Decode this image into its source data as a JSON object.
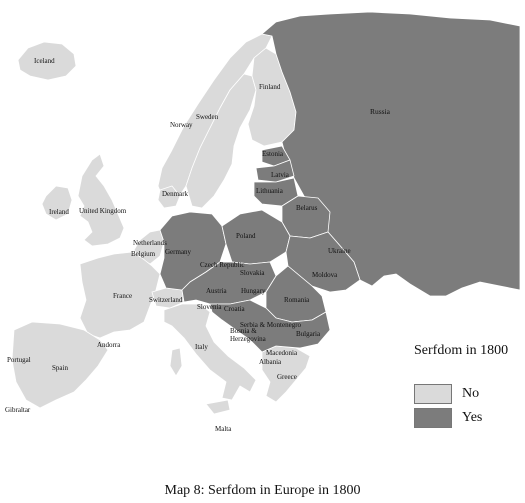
{
  "colors": {
    "no": "#dadada",
    "yes": "#7c7c7c",
    "border": "#ffffff",
    "outline": "#555555"
  },
  "legend": {
    "title": "Serfdom in 1800",
    "items": [
      {
        "label": "No",
        "color": "#dadada"
      },
      {
        "label": "Yes",
        "color": "#7c7c7c"
      }
    ]
  },
  "caption": "Map 8: Serfdom in Europe in 1800",
  "countries": {
    "iceland": "Iceland",
    "ireland": "Ireland",
    "uk": "United Kingdom",
    "norway": "Norway",
    "sweden": "Sweden",
    "finland": "Finland",
    "russia": "Russia",
    "estonia": "Estonia",
    "latvia": "Latvia",
    "lithuania": "Lithuania",
    "belarus": "Belarus",
    "denmark": "Denmark",
    "netherlands": "Netherlands",
    "belgium": "Belgium",
    "germany": "Germany",
    "poland": "Poland",
    "ukraine": "Ukraine",
    "czech": "Czech Republic",
    "slovakia": "Slovakia",
    "moldova": "Moldova",
    "france": "France",
    "switzerland": "Switzerland",
    "austria": "Austria",
    "hungary": "Hungary",
    "romania": "Romania",
    "slovenia": "Slovenia",
    "croatia": "Croatia",
    "serbia": "Serbia & Montenegro",
    "bosnia1": "Bosnia &",
    "bosnia2": "Herzegovina",
    "bulgaria": "Bulgaria",
    "italy": "Italy",
    "andorra": "Andorra",
    "portugal": "Portugal",
    "spain": "Spain",
    "gibraltar": "Gibraltar",
    "macedonia": "Macedonia",
    "albania": "Albania",
    "greece": "Greece",
    "malta": "Malta"
  }
}
